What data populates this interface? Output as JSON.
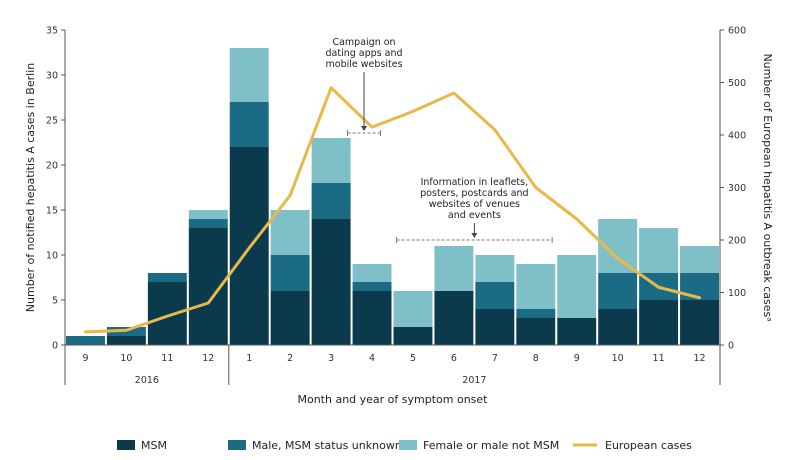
{
  "chart_data": {
    "type": "bar",
    "categories": [
      "9",
      "10",
      "11",
      "12",
      "1",
      "2",
      "3",
      "4",
      "5",
      "6",
      "7",
      "8",
      "9",
      "10",
      "11",
      "12"
    ],
    "year_groups": [
      {
        "label": "2016",
        "from": 0,
        "to": 3
      },
      {
        "label": "2017",
        "from": 4,
        "to": 15
      }
    ],
    "stacked": true,
    "series": [
      {
        "name": "MSM",
        "values": [
          0,
          1,
          7,
          13,
          22,
          6,
          14,
          6,
          2,
          6,
          4,
          3,
          3,
          4,
          5,
          5
        ]
      },
      {
        "name": "Male, MSM status unknown",
        "values": [
          1,
          1,
          1,
          1,
          5,
          4,
          4,
          1,
          0,
          0,
          3,
          1,
          0,
          4,
          3,
          3
        ]
      },
      {
        "name": "Female or male not MSM",
        "values": [
          0,
          0,
          0,
          1,
          6,
          5,
          5,
          2,
          4,
          5,
          3,
          5,
          7,
          6,
          5,
          3
        ]
      }
    ],
    "line_series": {
      "name": "European cases",
      "axis": "right",
      "values": [
        25,
        28,
        55,
        80,
        185,
        285,
        490,
        415,
        445,
        480,
        410,
        300,
        240,
        165,
        110,
        90
      ]
    },
    "xlabel": "Month and year of symptom onset",
    "ylabel": "Number of notified hepatitis A cases in Berlin",
    "ylabel_right": "Number of European hepatitis A outbreak casesᵃ",
    "ylim": [
      0,
      35
    ],
    "yticks": [
      0,
      5,
      10,
      15,
      20,
      25,
      30,
      35
    ],
    "ylim_right": [
      0,
      600
    ],
    "yticks_right": [
      0,
      100,
      200,
      300,
      400,
      500,
      600
    ],
    "annotations": [
      {
        "lines": [
          "Campaign on",
          "dating apps and",
          "mobile websites"
        ],
        "from_index": 7,
        "to_index": 7
      },
      {
        "lines": [
          "Information in leaflets,",
          "posters, postcards and",
          "websites of venues",
          "and events"
        ],
        "from_index": 8,
        "to_index": 11
      }
    ],
    "legend_position": "bottom",
    "grid": false
  },
  "colors": {
    "MSM": "#0c3a4d",
    "Male, MSM status unknown": "#1b6b84",
    "Female or male not MSM": "#7fbfc7",
    "European cases": "#e8b949",
    "axis": "#555555"
  }
}
